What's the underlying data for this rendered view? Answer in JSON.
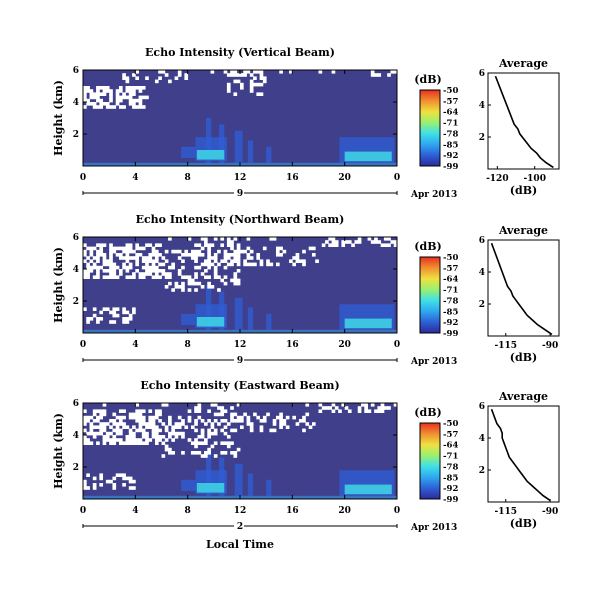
{
  "figure": {
    "date_label": "Apr 2013",
    "xlabel": "Local Time",
    "units_label": "(dB)",
    "colorbar_ticks": [
      "-50",
      "-57",
      "-64",
      "-71",
      "-78",
      "-85",
      "-92",
      "-99"
    ],
    "colors": {
      "background_data": "#3f3f8c",
      "gap": "#ffffff",
      "colormap": [
        "#2b2b9a",
        "#2f5fd6",
        "#2fa8f0",
        "#3fe0e8",
        "#9af070",
        "#f0e040",
        "#f09030",
        "#e83020"
      ]
    }
  },
  "chart_data": [
    {
      "type": "heatmap",
      "title": "Echo Intensity (Vertical Beam)",
      "ylabel": "Height (km)",
      "xticks": [
        "0",
        "4",
        "8",
        "12",
        "16",
        "20",
        "0"
      ],
      "yticks": [
        "2",
        "4",
        "6"
      ],
      "xlim": [
        0,
        24
      ],
      "ylim": [
        0,
        6
      ],
      "day_label": "9",
      "clim": [
        -99,
        -50
      ],
      "profile": {
        "title": "Average",
        "xlabel": "(dB)",
        "xticks": [
          "-120",
          "-100"
        ],
        "yticks": [
          "2",
          "4",
          "6"
        ],
        "xlim": [
          -125,
          -87
        ],
        "ylim": [
          0,
          6
        ],
        "height": [
          0.1,
          0.4,
          0.7,
          1.0,
          1.3,
          1.6,
          1.9,
          2.2,
          2.5,
          2.8,
          3.1,
          3.4,
          3.7,
          4.0,
          4.3,
          4.6,
          4.9,
          5.2,
          5.5,
          5.8
        ],
        "value": [
          -90,
          -94,
          -97,
          -99,
          -102,
          -104,
          -106,
          -108,
          -109,
          -111,
          -112,
          -113,
          -114,
          -115,
          -116,
          -117,
          -118,
          -119,
          -120,
          -121
        ]
      }
    },
    {
      "type": "heatmap",
      "title": "Echo Intensity (Northward Beam)",
      "ylabel": "Height (km)",
      "xticks": [
        "0",
        "4",
        "8",
        "12",
        "16",
        "20",
        "0"
      ],
      "yticks": [
        "2",
        "4",
        "6"
      ],
      "xlim": [
        0,
        24
      ],
      "ylim": [
        0,
        6
      ],
      "day_label": "9",
      "clim": [
        -99,
        -50
      ],
      "profile": {
        "title": "Average",
        "xlabel": "(dB)",
        "xticks": [
          "-115",
          "-90"
        ],
        "yticks": [
          "2",
          "4",
          "6"
        ],
        "xlim": [
          -125,
          -85
        ],
        "ylim": [
          0,
          6
        ],
        "height": [
          0.1,
          0.4,
          0.7,
          1.0,
          1.3,
          1.6,
          1.9,
          2.2,
          2.5,
          2.8,
          3.1,
          3.4,
          3.7,
          4.0,
          4.3,
          4.6,
          4.9,
          5.2,
          5.5,
          5.8
        ],
        "value": [
          -89,
          -93,
          -97,
          -100,
          -103,
          -105,
          -107,
          -109,
          -111,
          -112,
          -114,
          -115,
          -116,
          -117,
          -118,
          -119,
          -120,
          -121,
          -122,
          -123
        ]
      }
    },
    {
      "type": "heatmap",
      "title": "Echo Intensity (Eastward Beam)",
      "ylabel": "Height (km)",
      "xticks": [
        "0",
        "4",
        "8",
        "12",
        "16",
        "20",
        "0"
      ],
      "yticks": [
        "2",
        "4",
        "6"
      ],
      "xlim": [
        0,
        24
      ],
      "ylim": [
        0,
        6
      ],
      "day_label": "2",
      "clim": [
        -99,
        -50
      ],
      "profile": {
        "title": "Average",
        "xlabel": "(dB)",
        "xticks": [
          "-115",
          "-90"
        ],
        "yticks": [
          "2",
          "4",
          "6"
        ],
        "xlim": [
          -125,
          -85
        ],
        "ylim": [
          0,
          6
        ],
        "height": [
          0.1,
          0.4,
          0.7,
          1.0,
          1.3,
          1.6,
          1.9,
          2.2,
          2.5,
          2.8,
          3.1,
          3.4,
          3.7,
          4.0,
          4.3,
          4.6,
          4.9,
          5.2,
          5.5,
          5.8
        ],
        "value": [
          -90,
          -94,
          -97,
          -100,
          -103,
          -105,
          -107,
          -109,
          -111,
          -113,
          -114,
          -115,
          -116,
          -117,
          -117,
          -118,
          -120,
          -121,
          -122,
          -123
        ]
      }
    }
  ]
}
